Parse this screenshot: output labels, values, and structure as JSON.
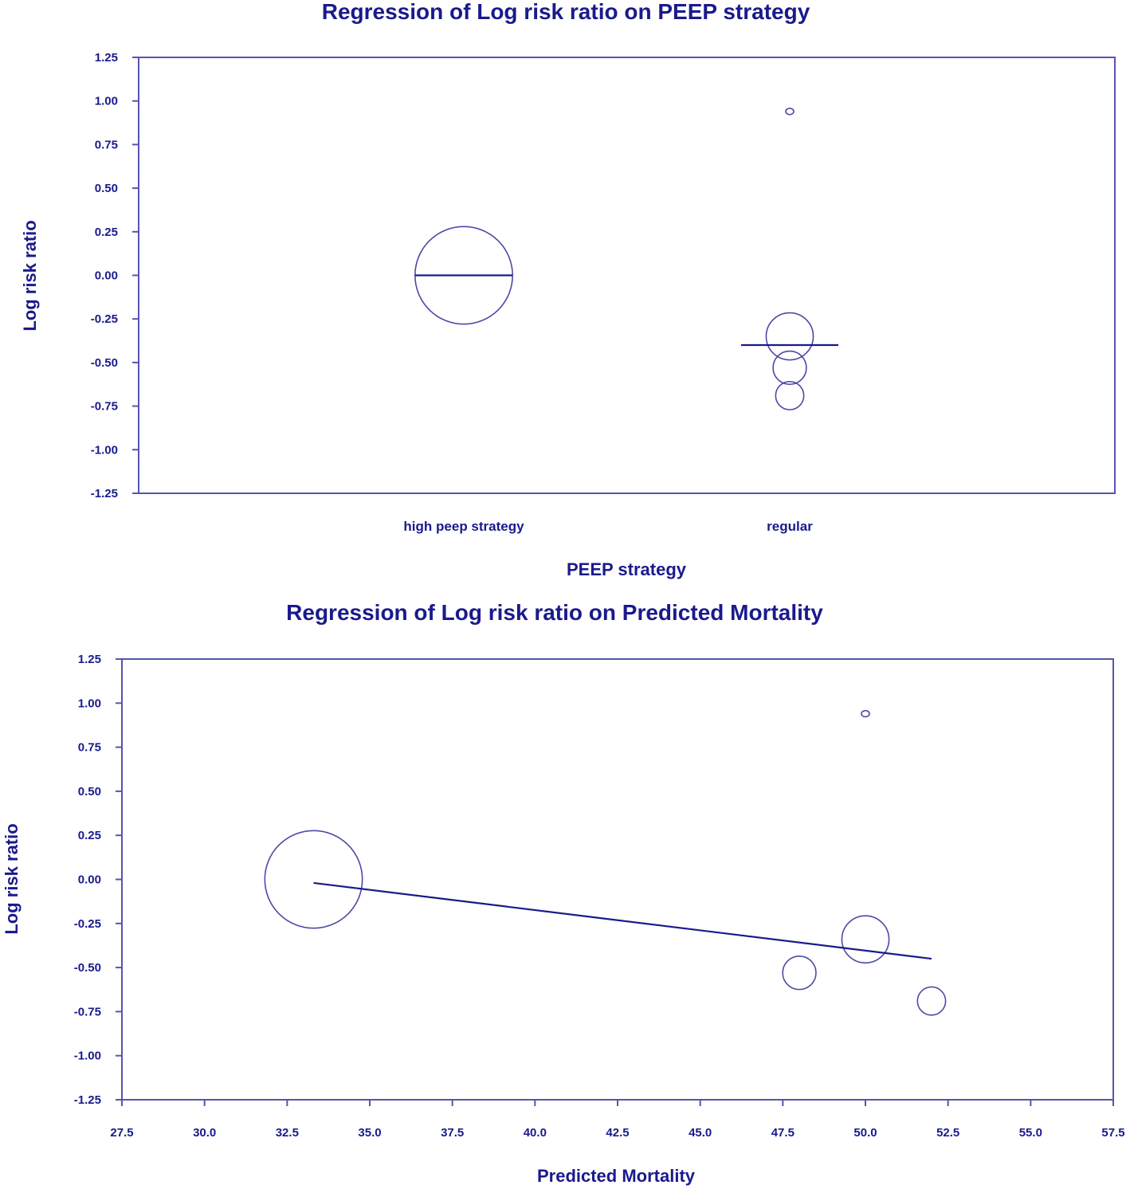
{
  "colors": {
    "ink": "#1a1a8c",
    "frame": "#5555b0",
    "bubble": "#4a4aa8",
    "background": "#ffffff"
  },
  "chart_data": [
    {
      "type": "scatter",
      "title": "Regression of Log risk ratio on PEEP strategy",
      "xlabel": "PEEP strategy",
      "ylabel": "Log risk ratio",
      "categories": [
        "high peep strategy",
        "regular"
      ],
      "ylim": [
        -1.25,
        1.25
      ],
      "yticks": [
        "1.25",
        "1.00",
        "0.75",
        "0.50",
        "0.25",
        "0.00",
        "-0.25",
        "-0.50",
        "-0.75",
        "-1.00",
        "-1.25"
      ],
      "grid": false,
      "legend": "none",
      "points": [
        {
          "category": "high peep strategy",
          "y": 0.0,
          "weight": 60
        },
        {
          "category": "regular",
          "y": 0.94,
          "weight": 2
        },
        {
          "category": "regular",
          "y": -0.35,
          "weight": 14
        },
        {
          "category": "regular",
          "y": -0.53,
          "weight": 7
        },
        {
          "category": "regular",
          "y": -0.69,
          "weight": 5
        }
      ],
      "fit": [
        {
          "category": "high peep strategy",
          "y": 0.0
        },
        {
          "category": "regular",
          "y": -0.4
        }
      ]
    },
    {
      "type": "scatter",
      "title": "Regression of Log risk ratio on Predicted Mortality",
      "xlabel": "Predicted Mortality",
      "ylabel": "Log risk ratio",
      "xlim": [
        27.5,
        57.5
      ],
      "ylim": [
        -1.25,
        1.25
      ],
      "xticks": [
        "27.5",
        "30.0",
        "32.5",
        "35.0",
        "37.5",
        "40.0",
        "42.5",
        "45.0",
        "47.5",
        "50.0",
        "52.5",
        "55.0",
        "57.5"
      ],
      "yticks": [
        "1.25",
        "1.00",
        "0.75",
        "0.50",
        "0.25",
        "0.00",
        "-0.25",
        "-0.50",
        "-0.75",
        "-1.00",
        "-1.25"
      ],
      "grid": false,
      "legend": "none",
      "points": [
        {
          "x": 33.3,
          "y": 0.0,
          "weight": 60
        },
        {
          "x": 50.0,
          "y": 0.94,
          "weight": 2
        },
        {
          "x": 50.0,
          "y": -0.34,
          "weight": 14
        },
        {
          "x": 48.0,
          "y": -0.53,
          "weight": 7
        },
        {
          "x": 52.0,
          "y": -0.69,
          "weight": 5
        }
      ],
      "fit": [
        {
          "x": 33.3,
          "y": -0.02
        },
        {
          "x": 52.0,
          "y": -0.45
        }
      ]
    }
  ]
}
